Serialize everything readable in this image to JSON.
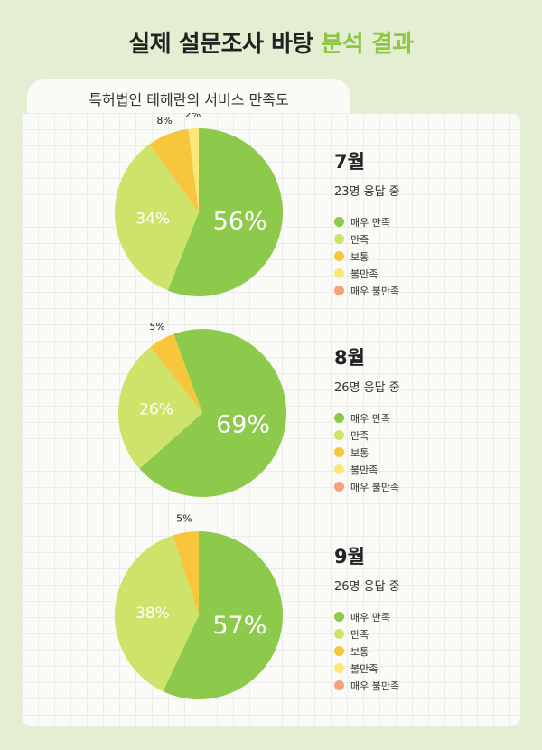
{
  "header": {
    "title_main": "실제 설문조사 바탕 ",
    "title_accent": "분석 결과"
  },
  "tab": {
    "label": "특허법인 테헤란의 서비스 만족도"
  },
  "legend_labels": [
    "매우 만족",
    "만족",
    "보통",
    "불만족",
    "매우 불만족"
  ],
  "colors": [
    "#8dc94a",
    "#cde36a",
    "#f8c63c",
    "#fbe779",
    "#f5a27c"
  ],
  "chart_data": [
    {
      "type": "pie",
      "month": "7월",
      "responses": "23명 응답 중",
      "categories": [
        "매우 만족",
        "만족",
        "보통",
        "불만족",
        "매우 불만족"
      ],
      "values": [
        56,
        34,
        8,
        2,
        0
      ],
      "labels": [
        "56%",
        "34%",
        "8%",
        "2%",
        ""
      ]
    },
    {
      "type": "pie",
      "month": "8월",
      "responses": "26명 응답 중",
      "categories": [
        "매우 만족",
        "만족",
        "보통",
        "불만족",
        "매우 불만족"
      ],
      "values": [
        69,
        26,
        5,
        0,
        0
      ],
      "labels": [
        "69%",
        "26%",
        "5%",
        "",
        ""
      ]
    },
    {
      "type": "pie",
      "month": "9월",
      "responses": "26명 응답 중",
      "categories": [
        "매우 만족",
        "만족",
        "보통",
        "불만족",
        "매우 불만족"
      ],
      "values": [
        57,
        38,
        5,
        0,
        0
      ],
      "labels": [
        "57%",
        "38%",
        "5%",
        "",
        ""
      ]
    }
  ]
}
